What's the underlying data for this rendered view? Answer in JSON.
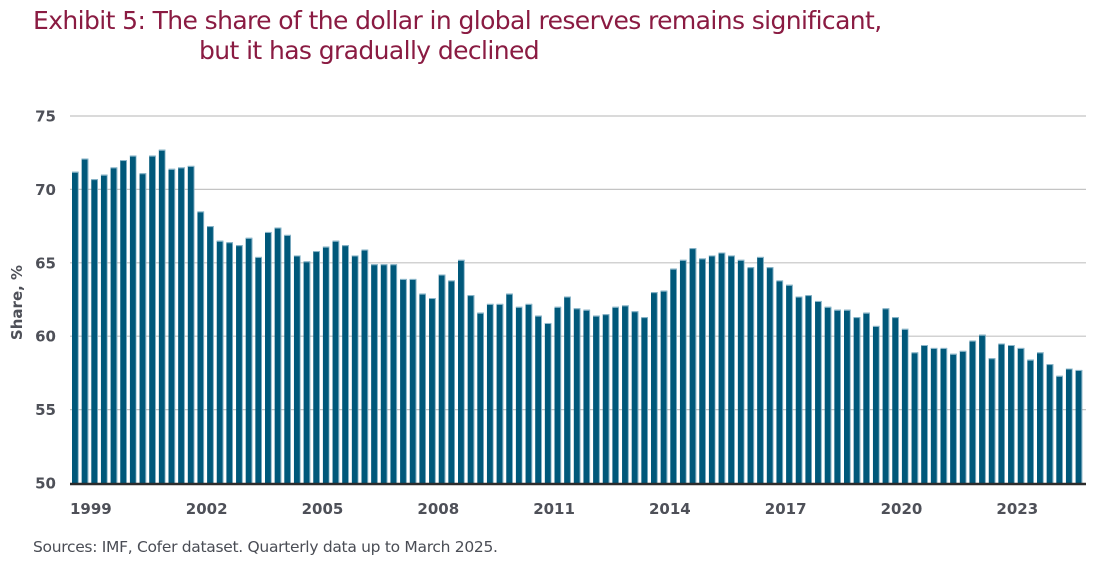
{
  "title_line1": "Exhibit 5: The share of the dollar in global reserves remains significant,",
  "title_line2": "but it has gradually declined",
  "source": "Sources: IMF, Cofer dataset. Quarterly data up to March 2025.",
  "colors": {
    "title": "#8a1b42",
    "bar": "#00587a",
    "bar_highlight": "#8fb9cc",
    "grid": "#c4c4c4",
    "axis": "#2b2b2b",
    "tick_text": "#4e5058"
  },
  "chart_data": {
    "type": "bar",
    "title": "Exhibit 5: The share of the dollar in global reserves remains significant, but it has gradually declined",
    "xlabel": "",
    "ylabel": "Share, %",
    "ylim": [
      50,
      75
    ],
    "yticks": [
      50,
      55,
      60,
      65,
      70,
      75
    ],
    "grid": true,
    "frequency": "quarterly",
    "start": "1999 Q1",
    "end": "2025 Q1",
    "xtick_labels": [
      {
        "label": "1999",
        "index": 0
      },
      {
        "label": "2002",
        "index": 12
      },
      {
        "label": "2005",
        "index": 24
      },
      {
        "label": "2008",
        "index": 36
      },
      {
        "label": "2011",
        "index": 48
      },
      {
        "label": "2014",
        "index": 60
      },
      {
        "label": "2017",
        "index": 72
      },
      {
        "label": "2020",
        "index": 84
      },
      {
        "label": "2023",
        "index": 96
      }
    ],
    "values": [
      71.2,
      72.1,
      70.7,
      71.0,
      71.5,
      72.0,
      72.3,
      71.1,
      72.3,
      72.7,
      71.4,
      71.5,
      71.6,
      68.5,
      67.5,
      66.5,
      66.4,
      66.2,
      66.7,
      65.4,
      67.1,
      67.4,
      66.9,
      65.5,
      65.1,
      65.8,
      66.1,
      66.5,
      66.2,
      65.5,
      65.9,
      64.9,
      64.9,
      64.9,
      63.9,
      63.9,
      62.9,
      62.6,
      64.2,
      63.8,
      65.2,
      62.8,
      61.6,
      62.2,
      62.2,
      62.9,
      62.0,
      62.2,
      61.4,
      60.9,
      62.0,
      62.7,
      61.9,
      61.8,
      61.4,
      61.5,
      62.0,
      62.1,
      61.7,
      61.3,
      63.0,
      63.1,
      64.6,
      65.2,
      66.0,
      65.3,
      65.5,
      65.7,
      65.5,
      65.2,
      64.7,
      65.4,
      64.7,
      63.8,
      63.5,
      62.7,
      62.8,
      62.4,
      62.0,
      61.8,
      61.8,
      61.3,
      61.6,
      60.7,
      61.9,
      61.3,
      60.5,
      58.9,
      59.4,
      59.2,
      59.2,
      58.8,
      59.0,
      59.7,
      60.1,
      58.5,
      59.5,
      59.4,
      59.2,
      58.4,
      58.9,
      58.1,
      57.3,
      57.8,
      57.7
    ]
  }
}
